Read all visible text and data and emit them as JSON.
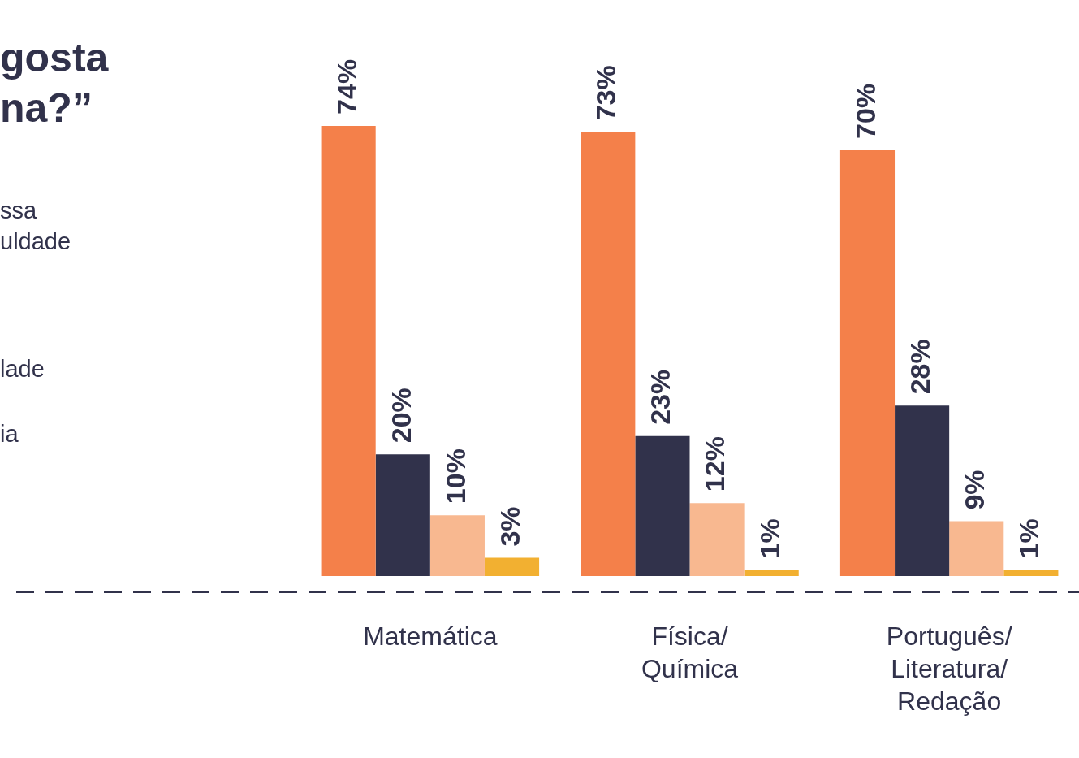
{
  "chart_data": {
    "type": "bar",
    "title": "gosta\nna?”",
    "categories": [
      "Matemática",
      "Física/\nQuímica",
      "Português/\nLiteratura/\nRedação"
    ],
    "series": [
      {
        "color": "#f4804a",
        "values": [
          74,
          73,
          70
        ],
        "value_labels": [
          "74%",
          "73%",
          "70%"
        ]
      },
      {
        "color": "#31324b",
        "values": [
          20,
          23,
          28
        ],
        "value_labels": [
          "20%",
          "23%",
          "28%"
        ]
      },
      {
        "color": "#f8b890",
        "values": [
          10,
          12,
          9
        ],
        "value_labels": [
          "10%",
          "12%",
          "9%"
        ]
      },
      {
        "color": "#f2b031",
        "values": [
          3,
          1,
          1
        ],
        "value_labels": [
          "3%",
          "1%",
          "1%"
        ]
      }
    ],
    "annotations": [
      "ssa\nuldade",
      "lade",
      "ia"
    ]
  }
}
